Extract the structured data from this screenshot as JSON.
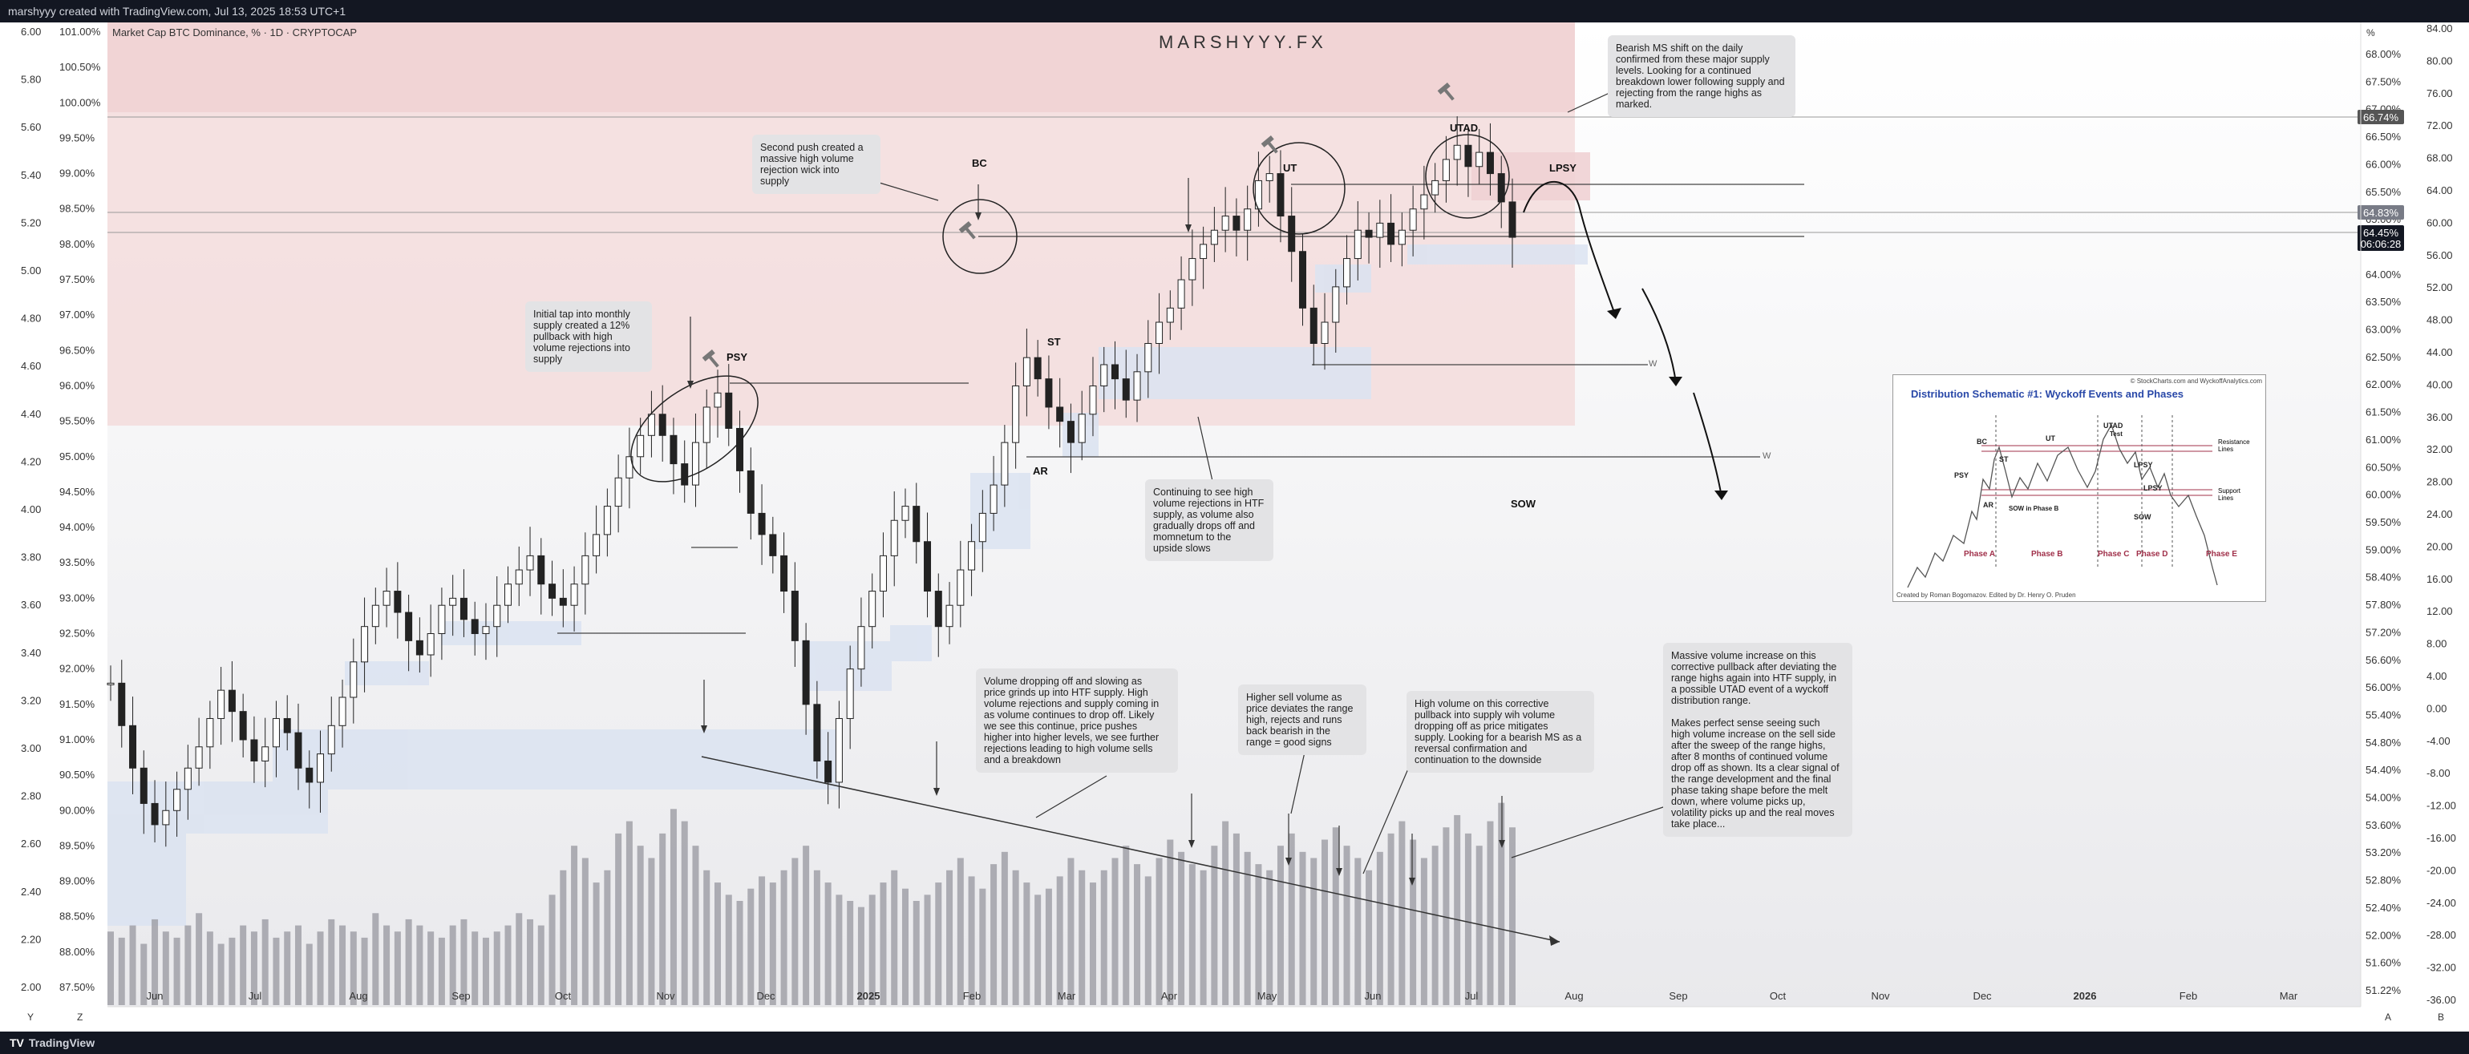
{
  "header": {
    "text": "marshyyy created with TradingView.com, Jul 13, 2025 18:53 UTC+1"
  },
  "footer": {
    "logo_mark": "TV",
    "logo_text": "TradingView"
  },
  "watermark": "MARSHYYY.FX",
  "chart_name": "Market Cap BTC Dominance, % · 1D · CRYPTOCAP",
  "corner_labels": {
    "left": "Y",
    "left2": "Z",
    "right_pct": "%",
    "right_a": "A",
    "right_b": "B"
  },
  "chart_data": {
    "type": "line",
    "title": "Market Cap BTC Dominance, % · 1D · CRYPTOCAP",
    "x_ticks": [
      "Jun",
      "Jul",
      "Aug",
      "Sep",
      "Oct",
      "Nov",
      "Dec",
      "2025",
      "Feb",
      "Mar",
      "Apr",
      "May",
      "Jun",
      "Jul",
      "Aug",
      "Sep",
      "Oct",
      "Nov",
      "Dec",
      "2026",
      "Feb",
      "Mar"
    ],
    "left_axis_1_ticks": [
      "6.00",
      "5.80",
      "5.60",
      "5.40",
      "5.20",
      "5.00",
      "4.80",
      "4.60",
      "4.40",
      "4.20",
      "4.00",
      "3.80",
      "3.60",
      "3.40",
      "3.20",
      "3.00",
      "2.80",
      "2.60",
      "2.40",
      "2.20",
      "2.00"
    ],
    "left_axis_2_ticks": [
      "101.00%",
      "100.50%",
      "100.00%",
      "99.50%",
      "99.00%",
      "98.50%",
      "98.00%",
      "97.50%",
      "97.00%",
      "96.50%",
      "96.00%",
      "95.50%",
      "95.00%",
      "94.50%",
      "94.00%",
      "93.50%",
      "93.00%",
      "92.50%",
      "92.00%",
      "91.50%",
      "91.00%",
      "90.50%",
      "90.00%",
      "89.50%",
      "89.00%",
      "88.50%",
      "88.00%",
      "87.50%"
    ],
    "right_axis_1_ticks": [
      "68.00%",
      "67.50%",
      "67.00%",
      "66.50%",
      "66.00%",
      "65.50%",
      "65.00%",
      "64.50%",
      "64.00%",
      "63.50%",
      "63.00%",
      "62.50%",
      "62.00%",
      "61.50%",
      "61.00%",
      "60.50%",
      "60.00%",
      "59.50%",
      "59.00%",
      "58.40%",
      "57.80%",
      "57.20%",
      "56.60%",
      "56.00%",
      "55.40%",
      "54.80%",
      "54.40%",
      "54.00%",
      "53.60%",
      "53.20%",
      "52.80%",
      "52.40%",
      "52.00%",
      "51.60%",
      "51.22%"
    ],
    "right_axis_2_ticks": [
      "84.00",
      "80.00",
      "76.00",
      "72.00",
      "68.00",
      "64.00",
      "60.00",
      "56.00",
      "52.00",
      "48.00",
      "44.00",
      "40.00",
      "36.00",
      "32.00",
      "28.00",
      "24.00",
      "20.00",
      "16.00",
      "12.00",
      "8.00",
      "4.00",
      "0.00",
      "-4.00",
      "-8.00",
      "-12.00",
      "-16.00",
      "-20.00",
      "-24.00",
      "-28.00",
      "-32.00",
      "-36.00"
    ],
    "price_tags": [
      {
        "text": "66.74%",
        "color": "#555555"
      },
      {
        "text": "64.83%",
        "color": "#787b86"
      },
      {
        "text": "64.45%",
        "color": "#131722"
      },
      {
        "text": "06:06:28",
        "color": "#131722"
      }
    ],
    "series": [
      {
        "values": [
          91.8,
          91.2,
          90.6,
          90.1,
          89.8,
          90.0,
          90.3,
          90.6,
          90.9,
          91.3,
          91.7,
          91.4,
          91.0,
          90.7,
          90.9,
          91.3,
          91.1,
          90.6,
          90.4,
          90.8,
          91.2,
          91.6,
          92.1,
          92.6,
          92.9,
          93.1,
          92.8,
          92.4,
          92.2,
          92.5,
          92.9,
          93.0,
          92.7,
          92.5,
          92.6,
          92.9,
          93.2,
          93.4,
          93.6,
          93.2,
          93.0,
          92.9,
          93.2,
          93.6,
          93.9,
          94.3,
          94.7,
          95.0,
          95.3,
          95.6,
          95.3,
          94.9,
          94.6,
          95.2,
          95.7,
          95.9,
          95.4,
          94.8,
          94.2,
          93.9,
          93.6,
          93.1,
          92.4,
          91.5,
          90.7,
          90.4,
          91.3,
          92.0,
          92.6,
          93.1,
          93.6,
          94.1,
          94.3,
          93.8,
          93.1,
          92.6,
          92.9,
          93.4,
          93.8,
          94.2,
          94.6,
          95.2,
          96.0,
          96.4,
          96.1,
          95.7,
          95.5,
          95.2,
          95.6,
          96.0,
          96.3,
          96.1,
          95.8,
          96.2,
          96.6,
          96.9,
          97.1,
          97.5,
          97.8,
          98.0,
          98.2,
          98.4,
          98.2,
          98.5,
          98.9,
          99.0,
          98.4,
          97.9,
          97.1,
          96.6,
          96.9,
          97.4,
          97.8,
          98.2,
          98.1,
          98.3,
          98.0,
          98.2,
          98.5,
          98.7,
          98.9,
          99.2,
          99.4,
          99.1,
          99.3,
          99.0,
          98.6,
          98.1
        ]
      }
    ],
    "volume": [
      12,
      11,
      13,
      10,
      14,
      12,
      11,
      13,
      15,
      12,
      10,
      11,
      13,
      12,
      14,
      11,
      12,
      13,
      10,
      12,
      14,
      13,
      12,
      11,
      15,
      13,
      12,
      14,
      13,
      12,
      11,
      13,
      14,
      12,
      11,
      12,
      13,
      15,
      14,
      13,
      18,
      22,
      26,
      24,
      20,
      22,
      28,
      30,
      26,
      24,
      28,
      32,
      30,
      26,
      22,
      20,
      18,
      17,
      19,
      21,
      20,
      22,
      24,
      26,
      22,
      20,
      18,
      17,
      16,
      18,
      20,
      22,
      19,
      17,
      18,
      20,
      22,
      24,
      21,
      19,
      23,
      25,
      22,
      20,
      18,
      19,
      21,
      24,
      22,
      20,
      22,
      24,
      26,
      23,
      21,
      24,
      27,
      25,
      23,
      22,
      26,
      30,
      28,
      25,
      23,
      22,
      26,
      28,
      25,
      24,
      27,
      29,
      26,
      24,
      22,
      25,
      28,
      30,
      27,
      24,
      26,
      29,
      31,
      28,
      26,
      30,
      33,
      29
    ]
  },
  "annotations": {
    "labels": {
      "bc": "BC",
      "ut": "UT",
      "utad": "UTAD",
      "lpsy": "LPSY",
      "psy": "PSY",
      "st": "ST",
      "ar": "AR",
      "sow": "SOW",
      "w1": "W",
      "w2": "W"
    },
    "notes": {
      "bearish_ms": "Bearish MS shift on the daily\nconfirmed from these major supply\nlevels. Looking for a continued\nbreakdown lower following supply and\nrejecting from the range highs as\nmarked.",
      "second_push": "Second push created a\nmassive high volume\nrejection wick into\nsupply",
      "initial_tap": "Initial tap into monthly\nsupply created a 12%\npullback with high\nvolume rejections into\nsupply",
      "continuing": "Continuing to see high\nvolume rejections in HTF\nsupply, as volume also\ngradually drops off and\nmomnetum to the\nupside slows",
      "volume_dropping": "Volume dropping off and slowing as\nprice grinds up into HTF supply. High\nvolume rejections and supply coming in\nas volume continues to drop off. Likely\nwe see this continue, price pushes\nhigher into higher levels, we see further\nrejections leading to high volume sells\nand a breakdown",
      "higher_sell": "Higher sell volume as\nprice deviates the range\nhigh, rejects and runs\nback bearish in the\nrange = good signs",
      "high_volume_corrective": "High volume on this corrective\npullback into supply wih volume\ndropping off as price mitigates\nsupply. Looking for a bearish MS as a\nreversal confirmation and\ncontinuation to the downside",
      "massive_volume": "Massive volume increase on this\ncorrective pullback after deviating the\nrange highs again into HTF supply, in\na possible UTAD event of a wyckoff\ndistribution range.\n\nMakes perfect sense seeing such\nhigh volume increase on the sell side\nafter the sweep of the range highs,\nafter 8 months of continued volume\ndrop off as shown. Its a clear signal of\nthe range development and the final\nphase taking shape before the melt\ndown, where volume picks up,\nvolatility picks up and the real moves\ntake place..."
    }
  },
  "schematic": {
    "title": "Distribution Schematic #1: Wyckoff Events and Phases",
    "credit_top": "© StockCharts.com and WyckoffAnalytics.com",
    "credit_bottom": "Created by Roman Bogomazov. Edited by Dr. Henry O. Pruden",
    "phases": [
      "Phase A",
      "Phase B",
      "Phase C",
      "Phase D",
      "Phase E"
    ],
    "events": [
      "BC",
      "UTAD",
      "Test",
      "UT",
      "PSY",
      "ST",
      "LPSY",
      "AR",
      "SOW in Phase B",
      "LPSY",
      "SOW"
    ],
    "legend": [
      "Resistance",
      "Lines",
      "Support",
      "Lines"
    ]
  },
  "colors": {
    "supply_zone": "#f3dcdc",
    "demand_zone": "#dfe6f2",
    "candle": "#222222",
    "volume": "#9c9ca4",
    "line": "#000000"
  }
}
